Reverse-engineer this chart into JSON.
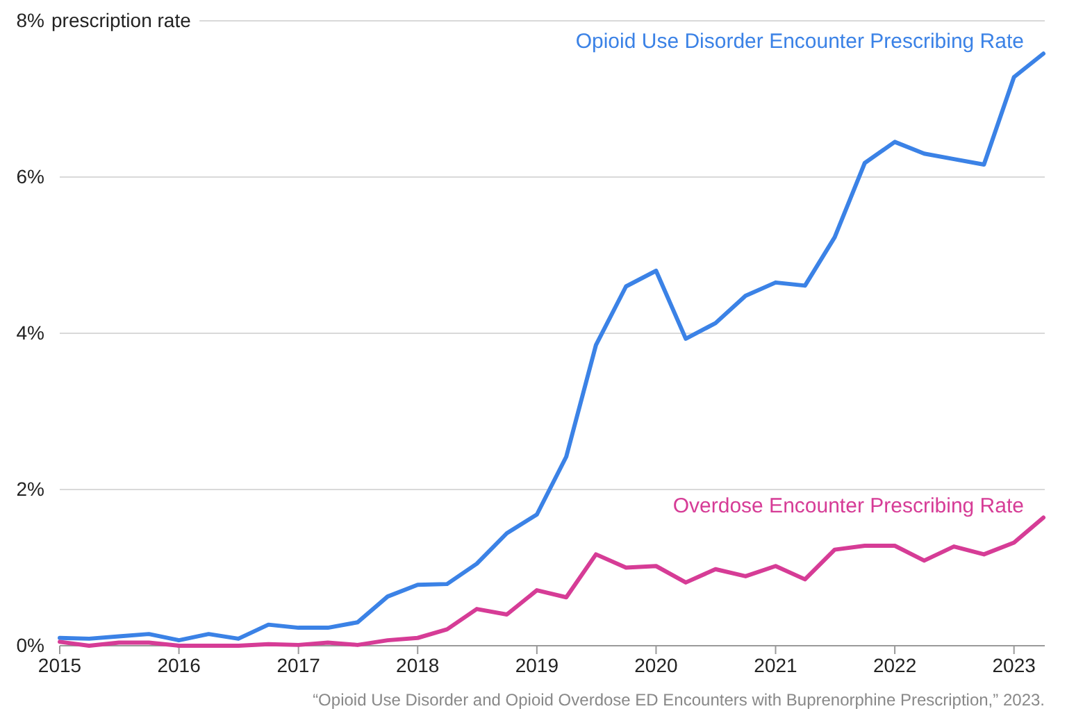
{
  "chart_data": {
    "type": "line",
    "ylabel": "prescription rate",
    "x": [
      "2015-01",
      "2015-04",
      "2015-07",
      "2015-10",
      "2016-01",
      "2016-04",
      "2016-07",
      "2016-10",
      "2017-01",
      "2017-04",
      "2017-07",
      "2017-10",
      "2018-01",
      "2018-04",
      "2018-07",
      "2018-10",
      "2019-01",
      "2019-04",
      "2019-07",
      "2019-10",
      "2020-01",
      "2020-04",
      "2020-07",
      "2020-10",
      "2021-01",
      "2021-04",
      "2021-07",
      "2021-10",
      "2022-01",
      "2022-04",
      "2022-07",
      "2022-10",
      "2023-01",
      "2023-04"
    ],
    "series": [
      {
        "name": "Opioid Use Disorder Encounter Prescribing Rate",
        "color": "#3b82e6",
        "values": [
          0.1,
          0.09,
          0.12,
          0.15,
          0.07,
          0.15,
          0.09,
          0.27,
          0.23,
          0.23,
          0.3,
          0.63,
          0.78,
          0.79,
          1.05,
          1.44,
          1.68,
          2.42,
          3.85,
          4.6,
          4.8,
          3.93,
          4.13,
          4.48,
          4.65,
          4.61,
          5.23,
          6.18,
          6.45,
          6.3,
          6.23,
          6.16,
          7.28,
          7.58
        ]
      },
      {
        "name": "Overdose Encounter Prescribing Rate",
        "color": "#d63c96",
        "values": [
          0.05,
          0,
          0.04,
          0.04,
          0,
          0,
          0,
          0.02,
          0.01,
          0.04,
          0.01,
          0.07,
          0.1,
          0.21,
          0.47,
          0.4,
          0.71,
          0.62,
          1.17,
          1.0,
          1.02,
          0.81,
          0.98,
          0.89,
          1.02,
          0.85,
          1.23,
          1.28,
          1.28,
          1.09,
          1.27,
          1.17,
          1.32,
          1.64
        ]
      }
    ],
    "xlim": [
      "2015-01",
      "2023-04"
    ],
    "xticks": [
      "2015",
      "2016",
      "2017",
      "2018",
      "2019",
      "2020",
      "2021",
      "2022",
      "2023"
    ],
    "ylim": [
      0,
      8
    ],
    "yticks": [
      {
        "value": 0,
        "label": "0%"
      },
      {
        "value": 2,
        "label": "2%"
      },
      {
        "value": 4,
        "label": "4%"
      },
      {
        "value": 6,
        "label": "6%"
      },
      {
        "value": 8,
        "label": "8%"
      }
    ],
    "grid": "y",
    "legend": false,
    "line_style": "solid",
    "marker": "none",
    "annotations": [
      "“Opioid Use Disorder and Opioid Overdose ED Encounters with Buprenorphine Prescription,” 2023."
    ]
  }
}
